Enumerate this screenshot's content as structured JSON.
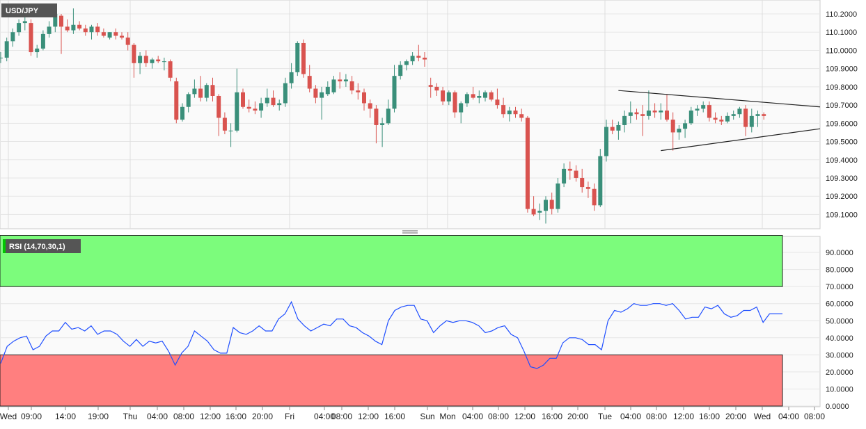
{
  "colors": {
    "bull": "#3a8f7a",
    "bear": "#d9534f",
    "wick": "#333333",
    "rsi_line": "#1f4fff",
    "overbought_zone": "#7cfc7c",
    "oversold_zone": "#ff7f7f",
    "grid": "#e6e6e6",
    "badge_bg": "#555555"
  },
  "chart_data": [
    {
      "type": "candlestick",
      "title": "USD/JPY",
      "ylim": [
        109.0,
        110.25
      ],
      "ticks": [
        "109.1000",
        "109.2000",
        "109.3000",
        "109.4000",
        "109.5000",
        "109.6000",
        "109.7000",
        "109.8000",
        "109.9000",
        "110.0000",
        "110.1000",
        "110.2000"
      ],
      "candles": [
        {
          "o": 109.96,
          "h": 109.99,
          "l": 109.93,
          "c": 109.96
        },
        {
          "o": 109.96,
          "h": 110.07,
          "l": 109.94,
          "c": 110.05
        },
        {
          "o": 110.05,
          "h": 110.12,
          "l": 110.02,
          "c": 110.1
        },
        {
          "o": 110.1,
          "h": 110.17,
          "l": 110.08,
          "c": 110.15
        },
        {
          "o": 110.15,
          "h": 110.19,
          "l": 110.11,
          "c": 110.16
        },
        {
          "o": 110.15,
          "h": 110.17,
          "l": 109.97,
          "c": 109.99
        },
        {
          "o": 109.99,
          "h": 110.03,
          "l": 109.96,
          "c": 110.01
        },
        {
          "o": 110.01,
          "h": 110.11,
          "l": 110.0,
          "c": 110.09
        },
        {
          "o": 110.09,
          "h": 110.16,
          "l": 110.07,
          "c": 110.13
        },
        {
          "o": 110.13,
          "h": 110.21,
          "l": 110.1,
          "c": 110.2
        },
        {
          "o": 110.19,
          "h": 110.2,
          "l": 109.98,
          "c": 110.13
        },
        {
          "o": 110.13,
          "h": 110.17,
          "l": 110.1,
          "c": 110.11
        },
        {
          "o": 110.11,
          "h": 110.23,
          "l": 110.09,
          "c": 110.14
        },
        {
          "o": 110.14,
          "h": 110.16,
          "l": 110.11,
          "c": 110.12
        },
        {
          "o": 110.12,
          "h": 110.14,
          "l": 110.08,
          "c": 110.1
        },
        {
          "o": 110.1,
          "h": 110.14,
          "l": 110.06,
          "c": 110.13
        },
        {
          "o": 110.13,
          "h": 110.15,
          "l": 110.08,
          "c": 110.1
        },
        {
          "o": 110.1,
          "h": 110.12,
          "l": 110.07,
          "c": 110.08
        },
        {
          "o": 110.07,
          "h": 110.1,
          "l": 110.06,
          "c": 110.1
        },
        {
          "o": 110.1,
          "h": 110.12,
          "l": 110.06,
          "c": 110.08
        },
        {
          "o": 110.08,
          "h": 110.1,
          "l": 110.06,
          "c": 110.07
        },
        {
          "o": 110.07,
          "h": 110.1,
          "l": 110.0,
          "c": 110.03
        },
        {
          "o": 110.03,
          "h": 110.04,
          "l": 109.85,
          "c": 109.93
        },
        {
          "o": 109.93,
          "h": 109.99,
          "l": 109.87,
          "c": 109.97
        },
        {
          "o": 109.97,
          "h": 110.0,
          "l": 109.91,
          "c": 109.93
        },
        {
          "o": 109.93,
          "h": 109.96,
          "l": 109.9,
          "c": 109.95
        },
        {
          "o": 109.95,
          "h": 109.97,
          "l": 109.93,
          "c": 109.94
        },
        {
          "o": 109.94,
          "h": 109.96,
          "l": 109.89,
          "c": 109.94
        },
        {
          "o": 109.94,
          "h": 109.95,
          "l": 109.83,
          "c": 109.85
        },
        {
          "o": 109.83,
          "h": 109.85,
          "l": 109.6,
          "c": 109.62
        },
        {
          "o": 109.62,
          "h": 109.71,
          "l": 109.61,
          "c": 109.69
        },
        {
          "o": 109.69,
          "h": 109.77,
          "l": 109.66,
          "c": 109.76
        },
        {
          "o": 109.76,
          "h": 109.84,
          "l": 109.74,
          "c": 109.79
        },
        {
          "o": 109.79,
          "h": 109.86,
          "l": 109.72,
          "c": 109.74
        },
        {
          "o": 109.74,
          "h": 109.82,
          "l": 109.72,
          "c": 109.81
        },
        {
          "o": 109.81,
          "h": 109.85,
          "l": 109.72,
          "c": 109.75
        },
        {
          "o": 109.75,
          "h": 109.76,
          "l": 109.53,
          "c": 109.63
        },
        {
          "o": 109.63,
          "h": 109.66,
          "l": 109.54,
          "c": 109.56
        },
        {
          "o": 109.56,
          "h": 109.6,
          "l": 109.47,
          "c": 109.56
        },
        {
          "o": 109.56,
          "h": 109.9,
          "l": 109.55,
          "c": 109.77
        },
        {
          "o": 109.77,
          "h": 109.79,
          "l": 109.68,
          "c": 109.69
        },
        {
          "o": 109.69,
          "h": 109.73,
          "l": 109.66,
          "c": 109.68
        },
        {
          "o": 109.68,
          "h": 109.72,
          "l": 109.65,
          "c": 109.67
        },
        {
          "o": 109.67,
          "h": 109.74,
          "l": 109.63,
          "c": 109.71
        },
        {
          "o": 109.71,
          "h": 109.79,
          "l": 109.69,
          "c": 109.74
        },
        {
          "o": 109.74,
          "h": 109.78,
          "l": 109.69,
          "c": 109.7
        },
        {
          "o": 109.7,
          "h": 109.73,
          "l": 109.67,
          "c": 109.71
        },
        {
          "o": 109.71,
          "h": 109.85,
          "l": 109.69,
          "c": 109.82
        },
        {
          "o": 109.82,
          "h": 109.93,
          "l": 109.79,
          "c": 109.88
        },
        {
          "o": 109.88,
          "h": 110.05,
          "l": 109.86,
          "c": 110.04
        },
        {
          "o": 110.04,
          "h": 110.06,
          "l": 109.85,
          "c": 109.87
        },
        {
          "o": 109.86,
          "h": 109.92,
          "l": 109.77,
          "c": 109.79
        },
        {
          "o": 109.79,
          "h": 109.81,
          "l": 109.71,
          "c": 109.74
        },
        {
          "o": 109.74,
          "h": 109.8,
          "l": 109.62,
          "c": 109.77
        },
        {
          "o": 109.76,
          "h": 109.83,
          "l": 109.75,
          "c": 109.8
        },
        {
          "o": 109.77,
          "h": 109.86,
          "l": 109.76,
          "c": 109.84
        },
        {
          "o": 109.84,
          "h": 109.88,
          "l": 109.79,
          "c": 109.83
        },
        {
          "o": 109.83,
          "h": 109.87,
          "l": 109.8,
          "c": 109.84
        },
        {
          "o": 109.83,
          "h": 109.86,
          "l": 109.76,
          "c": 109.78
        },
        {
          "o": 109.78,
          "h": 109.82,
          "l": 109.73,
          "c": 109.77
        },
        {
          "o": 109.77,
          "h": 109.79,
          "l": 109.67,
          "c": 109.71
        },
        {
          "o": 109.71,
          "h": 109.73,
          "l": 109.63,
          "c": 109.68
        },
        {
          "o": 109.68,
          "h": 109.7,
          "l": 109.49,
          "c": 109.59
        },
        {
          "o": 109.59,
          "h": 109.63,
          "l": 109.47,
          "c": 109.6
        },
        {
          "o": 109.6,
          "h": 109.73,
          "l": 109.59,
          "c": 109.68
        },
        {
          "o": 109.68,
          "h": 109.92,
          "l": 109.66,
          "c": 109.86
        },
        {
          "o": 109.86,
          "h": 109.94,
          "l": 109.84,
          "c": 109.92
        },
        {
          "o": 109.92,
          "h": 109.95,
          "l": 109.89,
          "c": 109.94
        },
        {
          "o": 109.94,
          "h": 109.99,
          "l": 109.92,
          "c": 109.97
        },
        {
          "o": 109.97,
          "h": 110.03,
          "l": 109.94,
          "c": 109.96
        },
        {
          "o": 109.96,
          "h": 109.99,
          "l": 109.91,
          "c": 109.95
        },
        {
          "o": 109.81,
          "h": 109.85,
          "l": 109.74,
          "c": 109.8
        },
        {
          "o": 109.8,
          "h": 109.82,
          "l": 109.75,
          "c": 109.78
        },
        {
          "o": 109.78,
          "h": 109.8,
          "l": 109.7,
          "c": 109.72
        },
        {
          "o": 109.72,
          "h": 109.78,
          "l": 109.7,
          "c": 109.77
        },
        {
          "o": 109.77,
          "h": 109.78,
          "l": 109.63,
          "c": 109.66
        },
        {
          "o": 109.66,
          "h": 109.72,
          "l": 109.6,
          "c": 109.71
        },
        {
          "o": 109.71,
          "h": 109.77,
          "l": 109.69,
          "c": 109.76
        },
        {
          "o": 109.76,
          "h": 109.8,
          "l": 109.73,
          "c": 109.74
        },
        {
          "o": 109.74,
          "h": 109.78,
          "l": 109.71,
          "c": 109.75
        },
        {
          "o": 109.74,
          "h": 109.78,
          "l": 109.72,
          "c": 109.77
        },
        {
          "o": 109.77,
          "h": 109.78,
          "l": 109.72,
          "c": 109.73
        },
        {
          "o": 109.73,
          "h": 109.79,
          "l": 109.68,
          "c": 109.7
        },
        {
          "o": 109.7,
          "h": 109.74,
          "l": 109.63,
          "c": 109.65
        },
        {
          "o": 109.65,
          "h": 109.69,
          "l": 109.61,
          "c": 109.67
        },
        {
          "o": 109.67,
          "h": 109.69,
          "l": 109.63,
          "c": 109.65
        },
        {
          "o": 109.65,
          "h": 109.68,
          "l": 109.61,
          "c": 109.63
        },
        {
          "o": 109.63,
          "h": 109.64,
          "l": 109.11,
          "c": 109.13
        },
        {
          "o": 109.13,
          "h": 109.2,
          "l": 109.09,
          "c": 109.1
        },
        {
          "o": 109.11,
          "h": 109.16,
          "l": 109.07,
          "c": 109.12
        },
        {
          "o": 109.12,
          "h": 109.2,
          "l": 109.05,
          "c": 109.18
        },
        {
          "o": 109.18,
          "h": 109.22,
          "l": 109.1,
          "c": 109.13
        },
        {
          "o": 109.13,
          "h": 109.3,
          "l": 109.11,
          "c": 109.27
        },
        {
          "o": 109.27,
          "h": 109.38,
          "l": 109.25,
          "c": 109.35
        },
        {
          "o": 109.35,
          "h": 109.39,
          "l": 109.29,
          "c": 109.34
        },
        {
          "o": 109.34,
          "h": 109.37,
          "l": 109.28,
          "c": 109.3
        },
        {
          "o": 109.3,
          "h": 109.35,
          "l": 109.22,
          "c": 109.25
        },
        {
          "o": 109.25,
          "h": 109.28,
          "l": 109.19,
          "c": 109.24
        },
        {
          "o": 109.24,
          "h": 109.27,
          "l": 109.12,
          "c": 109.15
        },
        {
          "o": 109.15,
          "h": 109.46,
          "l": 109.14,
          "c": 109.42
        },
        {
          "o": 109.42,
          "h": 109.62,
          "l": 109.39,
          "c": 109.58
        },
        {
          "o": 109.58,
          "h": 109.62,
          "l": 109.54,
          "c": 109.56
        },
        {
          "o": 109.56,
          "h": 109.61,
          "l": 109.51,
          "c": 109.59
        },
        {
          "o": 109.59,
          "h": 109.67,
          "l": 109.55,
          "c": 109.64
        },
        {
          "o": 109.64,
          "h": 109.72,
          "l": 109.6,
          "c": 109.66
        },
        {
          "o": 109.66,
          "h": 109.68,
          "l": 109.62,
          "c": 109.65
        },
        {
          "o": 109.65,
          "h": 109.7,
          "l": 109.53,
          "c": 109.64
        },
        {
          "o": 109.64,
          "h": 109.78,
          "l": 109.62,
          "c": 109.67
        },
        {
          "o": 109.67,
          "h": 109.71,
          "l": 109.63,
          "c": 109.66
        },
        {
          "o": 109.66,
          "h": 109.71,
          "l": 109.62,
          "c": 109.67
        },
        {
          "o": 109.67,
          "h": 109.76,
          "l": 109.61,
          "c": 109.62
        },
        {
          "o": 109.62,
          "h": 109.66,
          "l": 109.45,
          "c": 109.55
        },
        {
          "o": 109.55,
          "h": 109.59,
          "l": 109.51,
          "c": 109.57
        },
        {
          "o": 109.57,
          "h": 109.62,
          "l": 109.52,
          "c": 109.6
        },
        {
          "o": 109.6,
          "h": 109.69,
          "l": 109.59,
          "c": 109.67
        },
        {
          "o": 109.67,
          "h": 109.7,
          "l": 109.64,
          "c": 109.68
        },
        {
          "o": 109.68,
          "h": 109.72,
          "l": 109.66,
          "c": 109.7
        },
        {
          "o": 109.7,
          "h": 109.72,
          "l": 109.61,
          "c": 109.63
        },
        {
          "o": 109.63,
          "h": 109.66,
          "l": 109.6,
          "c": 109.62
        },
        {
          "o": 109.62,
          "h": 109.64,
          "l": 109.59,
          "c": 109.61
        },
        {
          "o": 109.61,
          "h": 109.66,
          "l": 109.6,
          "c": 109.64
        },
        {
          "o": 109.64,
          "h": 109.67,
          "l": 109.62,
          "c": 109.65
        },
        {
          "o": 109.65,
          "h": 109.69,
          "l": 109.63,
          "c": 109.68
        },
        {
          "o": 109.68,
          "h": 109.7,
          "l": 109.53,
          "c": 109.58
        },
        {
          "o": 109.58,
          "h": 109.68,
          "l": 109.55,
          "c": 109.64
        },
        {
          "o": 109.64,
          "h": 109.67,
          "l": 109.58,
          "c": 109.65
        },
        {
          "o": 109.65,
          "h": 109.66,
          "l": 109.62,
          "c": 109.64
        }
      ],
      "triangle": {
        "upper": [
          {
            "i": 102,
            "price": 109.78
          },
          {
            "i": 130,
            "price": 109.69
          }
        ],
        "lower": [
          {
            "i": 109,
            "price": 109.45
          },
          {
            "i": 130,
            "price": 109.57
          }
        ]
      }
    },
    {
      "type": "line",
      "title": "RSI (14,70,30,1)",
      "ylim": [
        0,
        100
      ],
      "ticks": [
        "0.0000",
        "10.0000",
        "20.0000",
        "30.0000",
        "40.0000",
        "50.0000",
        "60.0000",
        "70.0000",
        "80.0000",
        "90.0000"
      ],
      "overbought": 70,
      "oversold": 30,
      "values": [
        25,
        35,
        38,
        40,
        41,
        33,
        35,
        41,
        44,
        44,
        49,
        45,
        46,
        44,
        47,
        42,
        44,
        44,
        42,
        38,
        35,
        39,
        35,
        38,
        37,
        38,
        32,
        24,
        31,
        35,
        44,
        41,
        38,
        33,
        31,
        31,
        46,
        43,
        42,
        44,
        47,
        44,
        44,
        51,
        54,
        61,
        51,
        47,
        44,
        46,
        48,
        47,
        51,
        51,
        47,
        46,
        43,
        41,
        38,
        36,
        50,
        56,
        58,
        59,
        59,
        51,
        50,
        43,
        47,
        50,
        49,
        50,
        50,
        49,
        47,
        43,
        44,
        46,
        47,
        42,
        40,
        32,
        23,
        22,
        24,
        28,
        28,
        37,
        40,
        40,
        39,
        36,
        36,
        33,
        50,
        56,
        55,
        57,
        60,
        59,
        59,
        60,
        60,
        59,
        60,
        56,
        51,
        52,
        52,
        58,
        57,
        59,
        54,
        52,
        53,
        56,
        56,
        58,
        49,
        54,
        54,
        54
      ]
    }
  ],
  "x_axis": {
    "labels": [
      "Wed",
      "09:00",
      "14:00",
      "19:00",
      "Thu",
      "04:00",
      "08:00",
      "12:00",
      "16:00",
      "20:00",
      "Fri",
      "04:00",
      "08:00",
      "12:00",
      "16:00",
      "Sun",
      "Mon",
      "04:00",
      "08:00",
      "12:00",
      "16:00",
      "20:00",
      "Tue",
      "04:00",
      "08:00",
      "12:00",
      "16:00",
      "20:00",
      "Wed",
      "04:00",
      "08:00"
    ]
  }
}
